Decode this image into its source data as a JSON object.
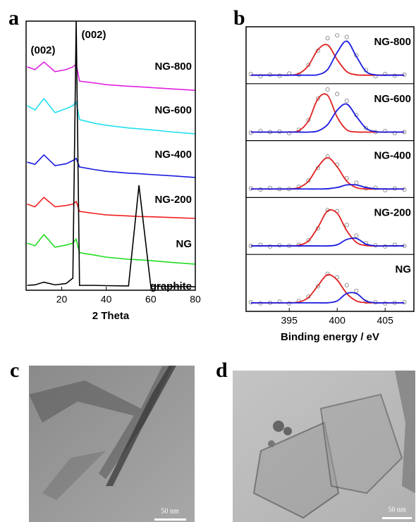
{
  "panels": [
    "a",
    "b",
    "c",
    "d"
  ],
  "chart_data": [
    {
      "type": "line",
      "xlabel": "2 Theta",
      "xlim": [
        4,
        80
      ],
      "xticks": [
        20,
        40,
        60,
        80
      ],
      "ylim": [
        0,
        100
      ],
      "annotations": [
        "(002)",
        "(002)"
      ],
      "x": [
        4.5,
        8,
        12,
        17,
        22,
        25,
        26.5,
        28,
        35,
        40,
        50,
        54.7,
        60,
        70,
        80
      ],
      "series": [
        {
          "name": "NG-800",
          "color": "#e020e0",
          "values": [
            83,
            82,
            84.8,
            81.2,
            82,
            83,
            84,
            77.7,
            77,
            76.4,
            75.8,
            75.6,
            75.3,
            74.8,
            74.3
          ]
        },
        {
          "name": "NG-600",
          "color": "#22e0f0",
          "values": [
            68.6,
            67,
            71.2,
            66,
            67.5,
            68.6,
            70,
            63.4,
            62,
            61.3,
            60.3,
            60,
            59.6,
            58.8,
            58.1
          ]
        },
        {
          "name": "NG-400",
          "color": "#1a1ae0",
          "values": [
            47.6,
            46.8,
            50.3,
            46.3,
            47,
            48.2,
            49,
            45.8,
            44.8,
            44.2,
            43.5,
            43.3,
            43,
            42.5,
            41.9
          ]
        },
        {
          "name": "NG-200",
          "color": "#f02020",
          "values": [
            32,
            31,
            34.5,
            31,
            31.5,
            32,
            33,
            29.3,
            28.5,
            28,
            27.6,
            27.4,
            27.3,
            27,
            26.7
          ]
        },
        {
          "name": "NG",
          "color": "#22dd22",
          "values": [
            17.5,
            16.5,
            20.7,
            16,
            16.8,
            17.5,
            19,
            14,
            13,
            12.3,
            11.5,
            11.3,
            11,
            10.3,
            9.7
          ]
        },
        {
          "name": "graphite",
          "color": "#000000",
          "values": [
            1.8,
            2,
            3,
            2,
            2.5,
            4.5,
            100,
            1.8,
            1.8,
            1.7,
            1.6,
            39,
            1.5,
            1.4,
            1.3
          ]
        }
      ]
    },
    {
      "type": "xps",
      "xlabel": "Binding energy / eV",
      "xlim": [
        390.5,
        408
      ],
      "xticks": [
        395,
        400,
        405
      ],
      "ylim": [
        0,
        1
      ],
      "x": [
        391,
        392,
        393,
        394,
        395,
        396,
        397,
        398,
        399,
        400,
        401,
        402,
        403,
        404,
        405,
        406,
        407
      ],
      "subplots": [
        {
          "name": "NG-800",
          "series": [
            {
              "color": "#888888",
              "values": [
                0.17,
                0.13,
                0.16,
                0.14,
                0.18,
                0.16,
                0.33,
                0.58,
                0.8,
                0.85,
                0.82,
                0.5,
                0.24,
                0.13,
                0.17,
                0.14,
                0.16
              ]
            },
            {
              "color": "#e02020",
              "values": [
                0.15,
                0.15,
                0.15,
                0.15,
                0.15,
                0.177,
                0.317,
                0.599,
                0.68,
                0.423,
                0.212,
                0.156,
                0.15,
                0.15,
                0.15,
                0.15,
                0.15
              ]
            },
            {
              "color": "#1a1ae0",
              "values": [
                0.15,
                0.15,
                0.15,
                0.15,
                0.15,
                0.15,
                0.15,
                0.159,
                0.248,
                0.55,
                0.747,
                0.478,
                0.216,
                0.155,
                0.15,
                0.15,
                0.15
              ]
            }
          ]
        },
        {
          "name": "NG-600",
          "series": [
            {
              "color": "#888888",
              "values": [
                0.14,
                0.17,
                0.15,
                0.16,
                0.13,
                0.19,
                0.36,
                0.74,
                0.9,
                0.82,
                0.7,
                0.45,
                0.22,
                0.15,
                0.17,
                0.13,
                0.15
              ]
            },
            {
              "color": "#e02020",
              "values": [
                0.15,
                0.15,
                0.15,
                0.15,
                0.15,
                0.174,
                0.345,
                0.735,
                0.796,
                0.413,
                0.189,
                0.152,
                0.15,
                0.15,
                0.15,
                0.15,
                0.15
              ]
            },
            {
              "color": "#1a1ae0",
              "values": [
                0.15,
                0.15,
                0.15,
                0.15,
                0.15,
                0.15,
                0.15,
                0.17,
                0.281,
                0.534,
                0.642,
                0.426,
                0.218,
                0.157,
                0.15,
                0.15,
                0.15
              ]
            }
          ]
        },
        {
          "name": "NG-400",
          "series": [
            {
              "color": "#888888",
              "values": [
                0.16,
                0.14,
                0.17,
                0.15,
                0.15,
                0.19,
                0.3,
                0.52,
                0.72,
                0.58,
                0.34,
                0.26,
                0.16,
                0.17,
                0.13,
                0.16,
                0.14
              ]
            },
            {
              "color": "#e02020",
              "values": [
                0.15,
                0.15,
                0.15,
                0.15,
                0.152,
                0.174,
                0.287,
                0.539,
                0.7,
                0.539,
                0.287,
                0.174,
                0.152,
                0.15,
                0.15,
                0.15,
                0.15
              ]
            },
            {
              "color": "#1a1ae0",
              "values": [
                0.15,
                0.15,
                0.15,
                0.15,
                0.15,
                0.15,
                0.15,
                0.15,
                0.154,
                0.176,
                0.221,
                0.221,
                0.176,
                0.154,
                0.15,
                0.15,
                0.15
              ]
            }
          ]
        },
        {
          "name": "NG-200",
          "series": [
            {
              "color": "#888888",
              "values": [
                0.15,
                0.17,
                0.14,
                0.16,
                0.15,
                0.17,
                0.25,
                0.46,
                0.78,
                0.76,
                0.52,
                0.33,
                0.2,
                0.16,
                0.14,
                0.17,
                0.15
              ]
            },
            {
              "color": "#e02020",
              "values": [
                0.15,
                0.15,
                0.15,
                0.15,
                0.151,
                0.162,
                0.238,
                0.479,
                0.765,
                0.723,
                0.417,
                0.212,
                0.157,
                0.15,
                0.15,
                0.15,
                0.15
              ]
            },
            {
              "color": "#1a1ae0",
              "values": [
                0.15,
                0.15,
                0.15,
                0.15,
                0.15,
                0.15,
                0.15,
                0.15,
                0.15,
                0.17,
                0.263,
                0.282,
                0.182,
                0.15,
                0.15,
                0.15,
                0.15
              ]
            }
          ]
        },
        {
          "name": "NG",
          "series": [
            {
              "color": "#888888",
              "values": [
                0.16,
                0.14,
                0.15,
                0.17,
                0.14,
                0.18,
                0.26,
                0.44,
                0.66,
                0.6,
                0.46,
                0.36,
                0.17,
                0.16,
                0.14,
                0.15,
                0.16
              ]
            },
            {
              "color": "#e02020",
              "values": [
                0.15,
                0.15,
                0.15,
                0.15,
                0.151,
                0.164,
                0.243,
                0.453,
                0.643,
                0.55,
                0.312,
                0.183,
                0.153,
                0.15,
                0.15,
                0.15,
                0.15
              ]
            },
            {
              "color": "#1a1ae0",
              "values": [
                0.15,
                0.15,
                0.15,
                0.15,
                0.15,
                0.15,
                0.15,
                0.15,
                0.151,
                0.184,
                0.315,
                0.315,
                0.184,
                0.151,
                0.15,
                0.15,
                0.15
              ]
            }
          ]
        }
      ]
    }
  ],
  "images": [
    {
      "scale_bar": "50 nm"
    },
    {
      "scale_bar": "50 nm"
    }
  ]
}
